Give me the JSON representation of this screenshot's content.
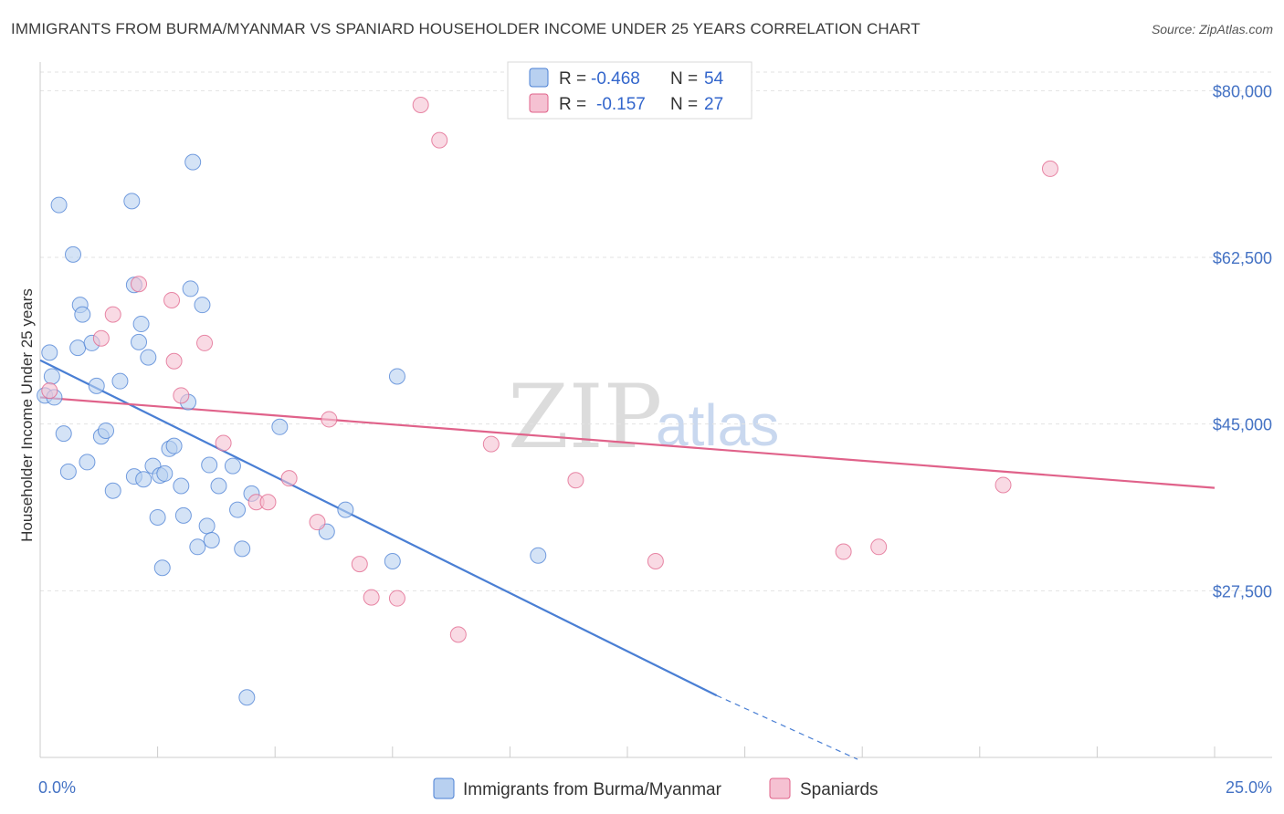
{
  "title": "IMMIGRANTS FROM BURMA/MYANMAR VS SPANIARD HOUSEHOLDER INCOME UNDER 25 YEARS CORRELATION CHART",
  "source": "Source: ZipAtlas.com",
  "watermark": {
    "zip": "ZIP",
    "atlas": "atlas"
  },
  "colors": {
    "blue": "#4a7fd4",
    "blue_fill": "#b8d0f0",
    "pink": "#e0628a",
    "pink_fill": "#f5c1d2"
  },
  "legend": {
    "r_label": "R =",
    "n_label": "N =",
    "series1": {
      "r": "-0.468",
      "n": "54"
    },
    "series2": {
      "r": "-0.157",
      "n": "27"
    }
  },
  "chart_data": {
    "type": "scatter",
    "title": "IMMIGRANTS FROM BURMA/MYANMAR VS SPANIARD HOUSEHOLDER INCOME UNDER 25 YEARS CORRELATION CHART",
    "xlabel": "",
    "ylabel": "Householder Income Under 25 years",
    "xlim": [
      0,
      25
    ],
    "ylim": [
      10000,
      83000
    ],
    "x_tick_labels": [
      "0.0%",
      "25.0%"
    ],
    "y_ticks": [
      27500,
      45000,
      62500,
      80000
    ],
    "y_tick_labels": [
      "$27,500",
      "$45,000",
      "$62,500",
      "$80,000"
    ],
    "grid": true,
    "legend_position": "top-center",
    "series": [
      {
        "name": "Immigrants from Burma/Myanmar",
        "color": "#4a7fd4",
        "points": [
          [
            0.1,
            48000
          ],
          [
            0.2,
            52500
          ],
          [
            0.25,
            50000
          ],
          [
            0.3,
            47800
          ],
          [
            0.4,
            68000
          ],
          [
            0.5,
            44000
          ],
          [
            0.6,
            40000
          ],
          [
            0.7,
            62800
          ],
          [
            0.8,
            53000
          ],
          [
            0.85,
            57500
          ],
          [
            0.9,
            56500
          ],
          [
            1.0,
            41000
          ],
          [
            1.1,
            53500
          ],
          [
            1.2,
            49000
          ],
          [
            1.3,
            43700
          ],
          [
            1.4,
            44300
          ],
          [
            1.55,
            38000
          ],
          [
            1.7,
            49500
          ],
          [
            1.95,
            68400
          ],
          [
            2.0,
            39500
          ],
          [
            2.0,
            59600
          ],
          [
            2.1,
            53600
          ],
          [
            2.15,
            55500
          ],
          [
            2.2,
            39200
          ],
          [
            2.3,
            52000
          ],
          [
            2.4,
            40600
          ],
          [
            2.5,
            35200
          ],
          [
            2.55,
            39600
          ],
          [
            2.6,
            29900
          ],
          [
            2.65,
            39800
          ],
          [
            2.75,
            42400
          ],
          [
            2.85,
            42700
          ],
          [
            3.0,
            38500
          ],
          [
            3.05,
            35400
          ],
          [
            3.15,
            47300
          ],
          [
            3.2,
            59200
          ],
          [
            3.25,
            72500
          ],
          [
            3.35,
            32100
          ],
          [
            3.45,
            57500
          ],
          [
            3.55,
            34300
          ],
          [
            3.6,
            40700
          ],
          [
            3.65,
            32800
          ],
          [
            3.8,
            38500
          ],
          [
            4.1,
            40600
          ],
          [
            4.2,
            36000
          ],
          [
            4.3,
            31900
          ],
          [
            4.4,
            16300
          ],
          [
            4.5,
            37700
          ],
          [
            5.1,
            44700
          ],
          [
            6.1,
            33700
          ],
          [
            6.5,
            36000
          ],
          [
            7.5,
            30600
          ],
          [
            7.6,
            50000
          ],
          [
            10.6,
            31200
          ]
        ],
        "trend": {
          "x_start": 0,
          "y_start": 51700,
          "x_solid_end": 14.4,
          "y_solid_end": 16500,
          "x_dash_end": 17.4,
          "y_dash_end": 9800
        }
      },
      {
        "name": "Spaniards",
        "color": "#e0628a",
        "points": [
          [
            0.2,
            48500
          ],
          [
            1.3,
            54000
          ],
          [
            1.55,
            56500
          ],
          [
            2.1,
            59700
          ],
          [
            2.8,
            58000
          ],
          [
            2.85,
            51600
          ],
          [
            3.0,
            48000
          ],
          [
            3.5,
            53500
          ],
          [
            3.9,
            43000
          ],
          [
            4.6,
            36800
          ],
          [
            4.85,
            36800
          ],
          [
            5.3,
            39300
          ],
          [
            5.9,
            34700
          ],
          [
            6.15,
            45500
          ],
          [
            6.8,
            30300
          ],
          [
            7.05,
            26800
          ],
          [
            7.6,
            26700
          ],
          [
            8.1,
            78500
          ],
          [
            8.5,
            74800
          ],
          [
            8.9,
            22900
          ],
          [
            9.6,
            42900
          ],
          [
            11.4,
            39100
          ],
          [
            13.1,
            30600
          ],
          [
            17.1,
            31600
          ],
          [
            17.85,
            32100
          ],
          [
            20.5,
            38600
          ],
          [
            21.5,
            71800
          ]
        ],
        "trend": {
          "x_start": 0,
          "y_start": 47800,
          "x_end": 25,
          "y_end": 38300
        }
      }
    ]
  }
}
